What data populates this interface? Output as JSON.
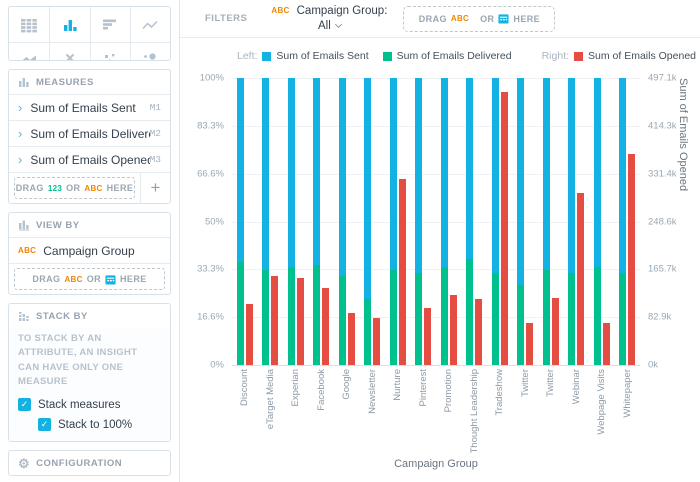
{
  "colors": {
    "accent": "#14b2e2",
    "green": "#00c18d",
    "orange": "#f18600",
    "red": "#e54d42",
    "icon_gray": "#b5c1cc"
  },
  "sidebar": {
    "vis_types": [
      {
        "name": "table",
        "active": false
      },
      {
        "name": "column-chart",
        "active": true
      },
      {
        "name": "bar-chart",
        "active": false
      },
      {
        "name": "line-chart",
        "active": false
      },
      {
        "name": "area-chart",
        "active": false
      },
      {
        "name": "headline",
        "active": false
      },
      {
        "name": "scatter-plot",
        "active": false
      },
      {
        "name": "bubble-chart",
        "active": false
      },
      {
        "name": "pie-chart",
        "active": false
      },
      {
        "name": "donut-chart",
        "active": false
      },
      {
        "name": "treemap",
        "active": false
      },
      {
        "name": "heatmap",
        "active": false
      }
    ],
    "measures": {
      "title": "MEASURES",
      "items": [
        {
          "label": "Sum of Emails Sent",
          "badge": "M1"
        },
        {
          "label": "Sum of Emails Delivered",
          "badge": "M2"
        },
        {
          "label": "Sum of Emails Opened",
          "badge": "M3"
        }
      ],
      "drop_zone": {
        "drag": "DRAG",
        "token_a": "123",
        "or": "OR",
        "token_b": "ABC",
        "here": "HERE"
      },
      "add_label": "+"
    },
    "view_by": {
      "title": "VIEW BY",
      "item": {
        "token": "ABC",
        "label": "Campaign Group"
      },
      "drop_zone": {
        "drag": "DRAG",
        "token_a": "ABC",
        "or": "OR",
        "here": "HERE"
      }
    },
    "stack_by": {
      "title": "STACK BY",
      "hint": "TO STACK BY AN ATTRIBUTE, AN INSIGHT CAN HAVE ONLY ONE MEASURE",
      "checkboxes": [
        {
          "label": "Stack measures",
          "checked": true
        },
        {
          "label": "Stack to 100%",
          "checked": true
        }
      ]
    },
    "configuration": {
      "title": "CONFIGURATION"
    }
  },
  "filters": {
    "label": "FILTERS",
    "chip": {
      "token": "ABC",
      "label": "Campaign Group:",
      "value": "All"
    },
    "drop_zone": {
      "drag": "DRAG",
      "token_a": "ABC",
      "or": "OR",
      "here": "HERE"
    }
  },
  "chart_data": {
    "type": "bar",
    "stacking": "percent-dual-axis",
    "legend": {
      "left_label": "Left:",
      "right_label": "Right:",
      "entries": [
        {
          "name": "Sum of Emails Sent",
          "color": "#14b2e2",
          "axis": "left"
        },
        {
          "name": "Sum of Emails Delivered",
          "color": "#00c18d",
          "axis": "left"
        },
        {
          "name": "Sum of Emails Opened",
          "color": "#e54d42",
          "axis": "right"
        }
      ]
    },
    "xlabel": "Campaign Group",
    "y_right_label": "Sum of Emails Opened",
    "y_left_ticks": [
      "100%",
      "83.3%",
      "66.6%",
      "50%",
      "33.3%",
      "16.6%",
      "0%"
    ],
    "y_right_ticks": [
      "497.1k",
      "414.3k",
      "331.4k",
      "248.6k",
      "165.7k",
      "82.9k",
      "0k"
    ],
    "y_left_range_pct": [
      0,
      100
    ],
    "y_right_range": [
      0,
      497100
    ],
    "grid": true,
    "categories": [
      "Discount",
      "eTarget Media",
      "Experian",
      "Facebook",
      "Google",
      "Newsletter",
      "Nurture",
      "Pinterest",
      "Promotion",
      "Thought Leadership",
      "Tradeshow",
      "Twitter",
      "Twitter",
      "Webinar",
      "Webpage Visits",
      "Whitepaper"
    ],
    "series": [
      {
        "name": "Sum of Emails Sent",
        "axis": "left",
        "unit": "% of stack",
        "values": [
          64,
          67,
          66,
          65,
          69,
          77,
          67,
          68,
          66,
          63,
          68,
          72,
          67,
          68,
          66,
          68
        ]
      },
      {
        "name": "Sum of Emails Delivered",
        "axis": "left",
        "unit": "% of stack",
        "values": [
          36,
          33,
          34,
          35,
          31,
          23,
          33,
          32,
          34,
          37,
          32,
          28,
          33,
          32,
          34,
          32
        ]
      },
      {
        "name": "Sum of Emails Opened",
        "axis": "right",
        "unit": "thousands",
        "values": [
          105,
          155,
          150,
          134,
          90,
          81,
          323,
          99,
          122,
          114,
          473,
          73,
          116,
          298,
          73,
          366
        ]
      }
    ]
  }
}
